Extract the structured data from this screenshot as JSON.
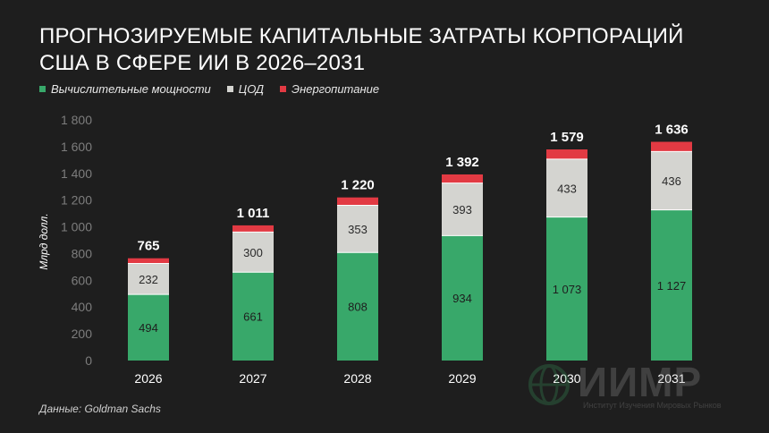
{
  "title": "Прогнозируемые капитальные затраты корпораций США в сфере ИИ в 2026–2031",
  "legend": [
    {
      "label": "Вычислительные мощности",
      "color": "#38a86a"
    },
    {
      "label": "ЦОД",
      "color": "#d4d4d0"
    },
    {
      "label": "Энергопитание",
      "color": "#e23a43"
    }
  ],
  "source": "Данные: Goldman Sachs",
  "watermark": {
    "name": "ИИМР",
    "subtitle": "Институт Изучения Мировых Рынков"
  },
  "chart_data": {
    "type": "bar",
    "stacked": true,
    "ylabel": "Млрд долл.",
    "ylim": [
      0,
      1800
    ],
    "yticks": [
      "0",
      "200",
      "400",
      "600",
      "800",
      "1 000",
      "1 200",
      "1 400",
      "1 600",
      "1 800"
    ],
    "grid": false,
    "legend_position": "top-left",
    "categories": [
      "2026",
      "2027",
      "2028",
      "2029",
      "2030",
      "2031"
    ],
    "series": [
      {
        "name": "Вычислительные мощности",
        "color": "#38a86a",
        "values": [
          494,
          661,
          808,
          934,
          1073,
          1127
        ],
        "labels": [
          "494",
          "661",
          "808",
          "934",
          "1 073",
          "1 127"
        ]
      },
      {
        "name": "ЦОД",
        "color": "#d4d4d0",
        "values": [
          232,
          300,
          353,
          393,
          433,
          436
        ],
        "labels": [
          "232",
          "300",
          "353",
          "393",
          "433",
          "436"
        ]
      },
      {
        "name": "Энергопитание",
        "color": "#e23a43",
        "values": [
          39,
          50,
          59,
          65,
          73,
          73
        ]
      }
    ],
    "totals": [
      "765",
      "1 011",
      "1 220",
      "1 392",
      "1 579",
      "1 636"
    ]
  }
}
